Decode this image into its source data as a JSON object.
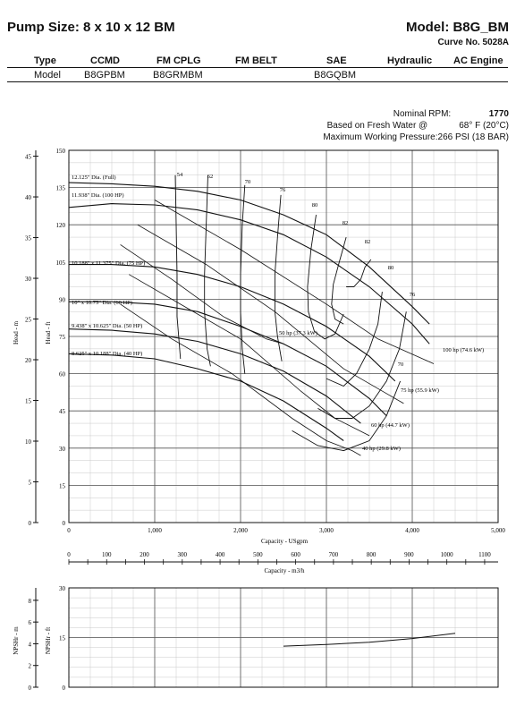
{
  "header": {
    "title": "Pump Size: 8 x 10 x 12 BM",
    "model": "Model: B8G_BM",
    "curve_no": "Curve No. 5028A"
  },
  "spec_table": {
    "headers": [
      "Type",
      "CCMD",
      "FM CPLG",
      "FM BELT",
      "SAE",
      "Hydraulic",
      "AC Engine"
    ],
    "row_label": "Model",
    "values": [
      "B8GPBM",
      "B8GRMBM",
      "",
      "B8GQBM",
      "",
      ""
    ]
  },
  "info": {
    "rpm_label": "Nominal RPM:",
    "rpm_value": "1770",
    "water_label": "Based on Fresh Water @",
    "water_value": "68° F (20°C)",
    "pressure": "Maximum Working Pressure:266 PSI (18 BAR)"
  },
  "chart_data": [
    {
      "type": "line",
      "xlabel": "Capacity - USgpm",
      "xlim": [
        0,
        5000
      ],
      "x_ticks": [
        "0",
        "1,000",
        "2,000",
        "3,000",
        "4,000",
        "5,000"
      ],
      "ylabel_ft": "Head - ft",
      "ylim_ft": [
        0,
        150
      ],
      "y_ticks_ft": [
        "0",
        "15",
        "30",
        "45",
        "60",
        "75",
        "90",
        "105",
        "120",
        "135",
        "150"
      ],
      "ylabel_m": "Head - m",
      "ylim_m": [
        0,
        45.72
      ],
      "y_ticks_m": [
        "0",
        "5",
        "10",
        "15",
        "20",
        "25",
        "30",
        "35",
        "40",
        "45"
      ],
      "grid": true,
      "impeller_curves": [
        {
          "label": "12.125\" Dia. (Full)",
          "points": [
            [
              0,
              137
            ],
            [
              500,
              136.5
            ],
            [
              1000,
              135.5
            ],
            [
              1500,
              133.5
            ],
            [
              2000,
              130
            ],
            [
              2500,
              124
            ],
            [
              3000,
              116
            ],
            [
              3500,
              103
            ],
            [
              4000,
              87
            ],
            [
              4200,
              80
            ]
          ]
        },
        {
          "label": "11.938\" Dia. (100 HP)",
          "points": [
            [
              0,
              127
            ],
            [
              500,
              128.5
            ],
            [
              1000,
              128
            ],
            [
              1500,
              126
            ],
            [
              2000,
              122
            ],
            [
              2500,
              116
            ],
            [
              3000,
              107
            ],
            [
              3500,
              95
            ],
            [
              4000,
              80
            ],
            [
              4200,
              72
            ]
          ]
        },
        {
          "label": "10.188\" x 11.375\" Dia. (75 HP)",
          "points": [
            [
              0,
              104
            ],
            [
              500,
              104
            ],
            [
              1000,
              103
            ],
            [
              1500,
              100
            ],
            [
              2000,
              95
            ],
            [
              2500,
              88
            ],
            [
              3000,
              79
            ],
            [
              3500,
              67
            ],
            [
              3800,
              57
            ]
          ]
        },
        {
          "label": "10\" x 10.75\" Dia. (60 HP)",
          "points": [
            [
              0,
              89
            ],
            [
              500,
              89
            ],
            [
              1000,
              88
            ],
            [
              1500,
              85
            ],
            [
              2000,
              79
            ],
            [
              2500,
              72
            ],
            [
              3000,
              63
            ],
            [
              3500,
              50
            ],
            [
              3700,
              43
            ]
          ]
        },
        {
          "label": "9.438\" x 10.625\" Dia. (50 HP)",
          "points": [
            [
              0,
              78
            ],
            [
              500,
              77.5
            ],
            [
              1000,
              76
            ],
            [
              1500,
              73
            ],
            [
              2000,
              68
            ],
            [
              2500,
              61
            ],
            [
              3000,
              51
            ],
            [
              3400,
              40
            ]
          ]
        },
        {
          "label": "8.625\" x 10.188\" Dia. (40 HP)",
          "points": [
            [
              0,
              68
            ],
            [
              500,
              67.5
            ],
            [
              1000,
              66
            ],
            [
              1500,
              62
            ],
            [
              2000,
              57
            ],
            [
              2500,
              49
            ],
            [
              3000,
              38
            ],
            [
              3200,
              33
            ]
          ]
        }
      ],
      "efficiency_labels": [
        "54",
        "62",
        "70",
        "76",
        "80",
        "82",
        "82",
        "80",
        "76",
        "70"
      ],
      "efficiency_curves": [
        {
          "label": "54",
          "points": [
            [
              1240,
              140
            ],
            [
              1250,
              120
            ],
            [
              1260,
              100
            ],
            [
              1260,
              83
            ],
            [
              1300,
              66
            ]
          ]
        },
        {
          "label": "62",
          "points": [
            [
              1620,
              140
            ],
            [
              1600,
              120
            ],
            [
              1580,
              100
            ],
            [
              1580,
              85
            ],
            [
              1610,
              70
            ],
            [
              1650,
              63
            ]
          ]
        },
        {
          "label": "70",
          "points": [
            [
              2050,
              136
            ],
            [
              2020,
              120
            ],
            [
              2000,
              100
            ],
            [
              2000,
              85
            ],
            [
              2020,
              70
            ],
            [
              2050,
              60
            ]
          ]
        },
        {
          "label": "76",
          "points": [
            [
              2470,
              132
            ],
            [
              2430,
              115
            ],
            [
              2400,
              100
            ],
            [
              2400,
              85
            ],
            [
              2430,
              75
            ],
            [
              2480,
              65
            ]
          ]
        },
        {
          "label": "80",
          "points": [
            [
              2880,
              124
            ],
            [
              2820,
              110
            ],
            [
              2780,
              95
            ],
            [
              2790,
              85
            ],
            [
              2860,
              77
            ],
            [
              2980,
              74
            ],
            [
              3100,
              76
            ],
            [
              3200,
              84
            ]
          ]
        },
        {
          "label": "82",
          "points": [
            [
              3230,
              115
            ],
            [
              3150,
              105
            ],
            [
              3080,
              96
            ],
            [
              3060,
              88
            ],
            [
              3100,
              82
            ],
            [
              3200,
              80
            ]
          ]
        },
        {
          "label": "82",
          "points": [
            [
              3520,
              106
            ],
            [
              3450,
              103
            ],
            [
              3400,
              98
            ],
            [
              3320,
              95
            ],
            [
              3230,
              95
            ]
          ]
        },
        {
          "label": "80",
          "points": [
            [
              3650,
              93
            ],
            [
              3600,
              80
            ],
            [
              3500,
              70
            ],
            [
              3350,
              60
            ],
            [
              3200,
              55
            ],
            [
              3000,
              58
            ]
          ]
        },
        {
          "label": "76",
          "points": [
            [
              3930,
              85
            ],
            [
              3850,
              70
            ],
            [
              3700,
              57
            ],
            [
              3500,
              47
            ],
            [
              3300,
              42
            ],
            [
              3100,
              42
            ],
            [
              2900,
              46
            ]
          ]
        },
        {
          "label": "70",
          "points": [
            [
              3860,
              57
            ],
            [
              3700,
              43
            ],
            [
              3500,
              33
            ],
            [
              3200,
              29
            ],
            [
              2900,
              31
            ],
            [
              2600,
              37
            ]
          ]
        }
      ],
      "power_labels": [
        "100 hp (74.6 kW)",
        "75 hp (55.9 kW)",
        "60 hp (44.7 kW)",
        "50 hp (37.3 kW)",
        "40 hp (29.8 kW)"
      ],
      "power_curves": [
        {
          "label": "100 hp (74.6 kW)",
          "points": [
            [
              1000,
              130
            ],
            [
              2000,
              110
            ],
            [
              3000,
              88
            ],
            [
              3600,
              74
            ],
            [
              4250,
              64
            ]
          ]
        },
        {
          "label": "75 hp (55.9 kW)",
          "points": [
            [
              800,
              120
            ],
            [
              1600,
              104
            ],
            [
              2400,
              85
            ],
            [
              3200,
              62
            ],
            [
              3700,
              52
            ],
            [
              3900,
              48
            ]
          ]
        },
        {
          "label": "60 hp (44.7 kW)",
          "points": [
            [
              600,
              112
            ],
            [
              1200,
              98
            ],
            [
              1800,
              83
            ],
            [
              2300,
              74
            ],
            [
              2500,
              72
            ]
          ]
        },
        {
          "label": "50 hp (37.3 kW)",
          "points": [
            [
              700,
              100
            ],
            [
              1400,
              86
            ],
            [
              2000,
              74
            ],
            [
              2700,
              53
            ],
            [
              3100,
              42
            ],
            [
              3500,
              35
            ]
          ]
        },
        {
          "label": "40 hp (29.8 kW)",
          "points": [
            [
              600,
              88
            ],
            [
              1200,
              74
            ],
            [
              1900,
              60
            ],
            [
              2600,
              42
            ],
            [
              3000,
              33
            ],
            [
              3300,
              29
            ],
            [
              3400,
              27
            ]
          ]
        }
      ]
    },
    {
      "type": "line",
      "xlabel": "Capacity - m3/h",
      "xlim": [
        0,
        1135.6
      ],
      "x_ticks": [
        "0",
        "100",
        "200",
        "300",
        "400",
        "500",
        "600",
        "700",
        "800",
        "900",
        "1000",
        "1100"
      ]
    },
    {
      "type": "line",
      "ylabel_ft": "NPSHr - ft",
      "ylim_ft": [
        0,
        30
      ],
      "y_ticks_ft": [
        "0",
        "15",
        "30"
      ],
      "ylabel_m": "NPSHr - m",
      "ylim_m": [
        0,
        9.144
      ],
      "y_ticks_m": [
        "0",
        "2",
        "4",
        "6",
        "8"
      ],
      "xlim": [
        0,
        5000
      ],
      "grid": true,
      "series": [
        {
          "points": [
            [
              2500,
              12.4
            ],
            [
              3000,
              12.9
            ],
            [
              3500,
              13.6
            ],
            [
              4000,
              14.7
            ],
            [
              4500,
              16.3
            ]
          ]
        }
      ]
    }
  ]
}
